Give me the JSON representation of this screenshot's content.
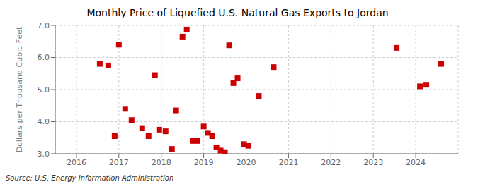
{
  "chart_data": {
    "type": "scatter",
    "title": "Monthly Price of Liquefied U.S. Natural Gas Exports to Jordan",
    "y_label": "Dollars per Thousand Cubic Feet",
    "annotations": [
      "Source: U.S. Energy Information Administration"
    ],
    "x": [
      2016.55,
      2016.75,
      2016.9,
      2017.0,
      2017.15,
      2017.3,
      2017.55,
      2017.7,
      2017.85,
      2017.95,
      2018.1,
      2018.25,
      2018.35,
      2018.5,
      2018.6,
      2018.75,
      2018.85,
      2019.0,
      2019.1,
      2019.2,
      2019.3,
      2019.4,
      2019.5,
      2019.6,
      2019.7,
      2019.8,
      2019.95,
      2020.05,
      2020.3,
      2020.65,
      2023.55,
      2024.1,
      2024.25,
      2024.6
    ],
    "values": [
      5.8,
      5.75,
      3.55,
      6.4,
      4.4,
      4.05,
      3.8,
      3.55,
      5.45,
      3.75,
      3.7,
      3.15,
      4.35,
      6.65,
      6.87,
      3.4,
      3.4,
      3.85,
      3.65,
      3.55,
      3.2,
      3.1,
      3.05,
      6.38,
      5.2,
      5.35,
      3.3,
      3.25,
      4.8,
      5.7,
      6.3,
      5.1,
      5.15,
      5.8
    ],
    "color": "#cc0000",
    "marker": "square",
    "xlim": [
      2015.5,
      2025.0
    ],
    "xticks": [
      2016,
      2017,
      2018,
      2019,
      2020,
      2021,
      2022,
      2023,
      2024
    ],
    "ylim": [
      3.0,
      7.0
    ],
    "yticks": [
      {
        "value": 3.0,
        "label": "3.0"
      },
      {
        "value": 4.0,
        "label": "4.0"
      },
      {
        "value": 5.0,
        "label": "5.0"
      },
      {
        "value": 6.0,
        "label": "6.0"
      },
      {
        "value": 7.0,
        "label": "7.0"
      }
    ],
    "grid": true
  }
}
